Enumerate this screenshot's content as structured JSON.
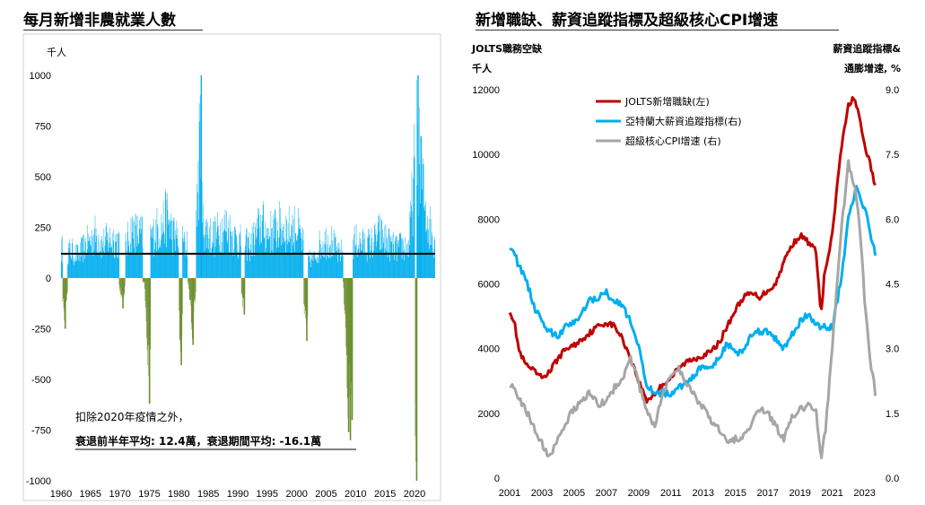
{
  "colors": {
    "growth_bar": "#00AEEF",
    "recession_bar": "#6A8F2E",
    "average_line": "#000000",
    "jolts_line": "#C00000",
    "atlanta_line": "#00AEEF",
    "cpi_line": "#A6A6A6"
  },
  "chart_data": [
    {
      "type": "bar",
      "title": "每月新增非農就業人數",
      "ylabel": "千人",
      "ylim": [
        -1000,
        1000
      ],
      "yticks": [
        -1000,
        -750,
        -500,
        -250,
        0,
        250,
        500,
        750,
        1000
      ],
      "xlim": [
        1960,
        2023.5
      ],
      "xticks": [
        1960,
        1965,
        1970,
        1975,
        1980,
        1985,
        1990,
        1995,
        2000,
        2005,
        2010,
        2015,
        2020
      ],
      "reference_line": 120,
      "annotation_line1": "扣除2020年疫情之外，",
      "annotation_line2": "衰退前半年平均: 12.4萬，衰退期間平均:  -16.1萬",
      "recessions": [
        [
          1960.3,
          1961.1
        ],
        [
          1969.9,
          1970.9
        ],
        [
          1973.9,
          1975.2
        ],
        [
          1980.0,
          1980.6
        ],
        [
          1981.5,
          1982.9
        ],
        [
          1990.6,
          1991.2
        ],
        [
          2001.2,
          2001.9
        ],
        [
          2007.9,
          2009.5
        ],
        [
          2020.1,
          2020.35
        ]
      ],
      "series": [
        {
          "name": "growth",
          "x": [
            1960,
            1962,
            1963,
            1964,
            1965,
            1966,
            1967,
            1968,
            1969,
            1971,
            1972,
            1973,
            1975.5,
            1976,
            1977,
            1978,
            1979,
            1980.8,
            1981,
            1983,
            1983.7,
            1984,
            1985,
            1986,
            1987,
            1988,
            1989,
            1990,
            1992,
            1993,
            1994,
            1995,
            1996,
            1997,
            1998,
            1999,
            2000,
            2002,
            2003,
            2004,
            2005,
            2006,
            2007,
            2010,
            2011,
            2012,
            2013,
            2014,
            2015,
            2016,
            2017,
            2018,
            2019,
            2020.5,
            2021,
            2022,
            2023
          ],
          "values": [
            200,
            180,
            150,
            220,
            260,
            300,
            230,
            260,
            270,
            210,
            330,
            300,
            280,
            320,
            350,
            420,
            300,
            240,
            220,
            420,
            1000,
            380,
            300,
            280,
            330,
            350,
            300,
            250,
            220,
            280,
            380,
            300,
            320,
            350,
            340,
            330,
            350,
            130,
            130,
            230,
            260,
            250,
            160,
            250,
            230,
            230,
            240,
            300,
            260,
            220,
            200,
            220,
            200,
            1000,
            700,
            450,
            280
          ]
        },
        {
          "name": "decline",
          "x": [
            1960.6,
            1970.4,
            1974.9,
            1980.3,
            1982.3,
            1991.0,
            2001.6,
            2008.7,
            2009.0,
            2009.3,
            2020.25
          ],
          "values": [
            -250,
            -150,
            -620,
            -430,
            -330,
            -180,
            -310,
            -760,
            -800,
            -700,
            -1000
          ]
        }
      ]
    },
    {
      "type": "line",
      "title": "新增職缺、薪資追蹤指標及超級核心CPI增速",
      "ylabel_left_line1": "JOLTS職務空缺",
      "ylabel_left_line2": "千人",
      "ylabel_right_line1": "薪資追蹤指標&",
      "ylabel_right_line2": "通膨增速, %",
      "ylim_left": [
        0,
        12000
      ],
      "yticks_left": [
        0,
        2000,
        4000,
        6000,
        8000,
        10000,
        12000
      ],
      "ylim_right": [
        0.0,
        9.0
      ],
      "yticks_right": [
        "0.0",
        "1.5",
        "3.0",
        "4.5",
        "6.0",
        "7.5",
        "9.0"
      ],
      "xlim": [
        2001,
        2023.8
      ],
      "xticks": [
        2001,
        2003,
        2005,
        2007,
        2009,
        2011,
        2013,
        2015,
        2017,
        2019,
        2021,
        2023
      ],
      "legend_position": "top-left",
      "series": [
        {
          "name": "JOLTS新增職缺(左)",
          "axis": "left",
          "x": [
            2001.0,
            2001.3,
            2001.6,
            2002.0,
            2002.5,
            2003.0,
            2003.5,
            2004.0,
            2004.5,
            2005.0,
            2005.5,
            2006.0,
            2006.5,
            2007.0,
            2007.5,
            2008.0,
            2008.5,
            2009.0,
            2009.5,
            2010.0,
            2010.5,
            2011.0,
            2011.5,
            2012.0,
            2012.5,
            2013.0,
            2013.5,
            2014.0,
            2014.5,
            2015.0,
            2015.5,
            2016.0,
            2016.5,
            2017.0,
            2017.5,
            2018.0,
            2018.5,
            2019.0,
            2019.5,
            2020.0,
            2020.3,
            2020.5,
            2021.0,
            2021.5,
            2022.0,
            2022.3,
            2022.6,
            2023.0,
            2023.4,
            2023.7
          ],
          "y": [
            5200,
            4800,
            3900,
            3500,
            3300,
            3100,
            3300,
            3700,
            4000,
            4100,
            4300,
            4500,
            4700,
            4800,
            4700,
            4300,
            3700,
            3000,
            2400,
            2600,
            2900,
            3100,
            3400,
            3600,
            3700,
            3800,
            3900,
            4200,
            4700,
            5200,
            5600,
            5700,
            5600,
            5800,
            6000,
            6700,
            7200,
            7500,
            7300,
            7000,
            5000,
            6200,
            7500,
            10000,
            11500,
            11800,
            11300,
            10300,
            9600,
            8900
          ]
        },
        {
          "name": "亞特蘭大薪資追蹤指標(右)",
          "axis": "right",
          "x": [
            2001.0,
            2001.3,
            2001.6,
            2002.0,
            2002.5,
            2003.0,
            2003.5,
            2004.0,
            2004.5,
            2005.0,
            2005.5,
            2006.0,
            2006.5,
            2007.0,
            2007.5,
            2008.0,
            2008.5,
            2009.0,
            2009.5,
            2010.0,
            2010.5,
            2011.0,
            2011.5,
            2012.0,
            2012.5,
            2013.0,
            2013.5,
            2014.0,
            2014.5,
            2015.0,
            2015.5,
            2016.0,
            2016.5,
            2017.0,
            2017.5,
            2018.0,
            2018.5,
            2019.0,
            2019.5,
            2020.0,
            2020.3,
            2020.6,
            2021.0,
            2021.5,
            2022.0,
            2022.5,
            2022.8,
            2023.0,
            2023.4,
            2023.7
          ],
          "y": [
            5.4,
            5.2,
            4.9,
            4.6,
            4.0,
            3.6,
            3.4,
            3.3,
            3.5,
            3.6,
            3.9,
            4.1,
            4.2,
            4.3,
            4.1,
            4.0,
            3.6,
            3.0,
            2.2,
            1.9,
            2.0,
            1.9,
            2.1,
            2.2,
            2.4,
            2.6,
            2.5,
            2.8,
            3.1,
            2.9,
            3.0,
            3.3,
            3.4,
            3.4,
            3.2,
            3.0,
            3.3,
            3.6,
            3.8,
            3.6,
            3.5,
            3.5,
            3.5,
            4.5,
            6.0,
            6.7,
            6.4,
            6.3,
            5.6,
            5.2
          ]
        },
        {
          "name": "超級核心CPI增速 (右)",
          "axis": "right",
          "x": [
            2001.0,
            2001.3,
            2001.6,
            2002.0,
            2002.5,
            2003.0,
            2003.5,
            2004.0,
            2004.5,
            2005.0,
            2005.5,
            2006.0,
            2006.5,
            2007.0,
            2007.5,
            2008.0,
            2008.5,
            2009.0,
            2009.5,
            2010.0,
            2010.5,
            2011.0,
            2011.5,
            2012.0,
            2012.5,
            2013.0,
            2013.5,
            2014.0,
            2014.5,
            2015.0,
            2015.5,
            2016.0,
            2016.5,
            2017.0,
            2017.5,
            2018.0,
            2018.5,
            2019.0,
            2019.5,
            2020.0,
            2020.3,
            2020.6,
            2021.0,
            2021.5,
            2022.0,
            2022.5,
            2022.8,
            2023.0,
            2023.4,
            2023.7
          ],
          "y": [
            2.2,
            2.0,
            1.8,
            1.6,
            1.2,
            0.8,
            0.5,
            0.9,
            1.3,
            1.6,
            1.8,
            2.0,
            1.7,
            1.8,
            2.1,
            2.3,
            2.8,
            2.2,
            1.5,
            1.2,
            2.0,
            2.4,
            2.5,
            2.2,
            1.9,
            1.6,
            1.3,
            1.1,
            0.8,
            0.9,
            1.0,
            1.3,
            1.6,
            1.5,
            1.2,
            0.9,
            1.4,
            1.6,
            1.7,
            1.6,
            0.4,
            1.2,
            3.0,
            5.5,
            7.3,
            6.5,
            5.4,
            4.2,
            2.6,
            1.9
          ]
        }
      ]
    }
  ]
}
